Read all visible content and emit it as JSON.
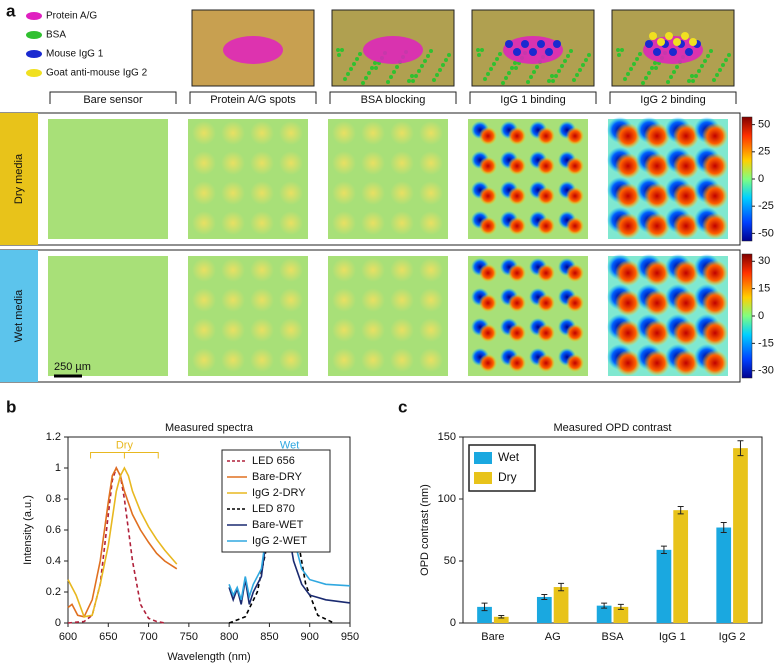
{
  "panel_a": {
    "label": "a",
    "legend": [
      "Protein A/G",
      "BSA",
      "Mouse IgG 1",
      "Goat anti-mouse IgG 2"
    ],
    "stages": [
      "Bare sensor",
      "Protein A/G spots",
      "BSA blocking",
      "IgG 1 binding",
      "IgG 2 binding"
    ],
    "rows": [
      {
        "label": "Dry media",
        "color": "#e8c31a",
        "colorbar_lim": [
          -57,
          57
        ],
        "colorbar_ticks": [
          50,
          25,
          0,
          -25,
          -50
        ]
      },
      {
        "label": "Wet media",
        "color": "#5cc4ec",
        "colorbar_lim": [
          -34,
          34
        ],
        "colorbar_ticks": [
          30,
          15,
          0,
          -15,
          -30
        ]
      }
    ],
    "scale_bar": "250 µm"
  },
  "chart_data": [
    {
      "type": "line",
      "label": "b",
      "title": "Measured spectra",
      "x_label": "Wavelength (nm)",
      "y_label": "Intensity (a.u.)",
      "xlim": [
        600,
        950
      ],
      "xticks": [
        600,
        650,
        700,
        750,
        800,
        850,
        900,
        950
      ],
      "ylim": [
        0,
        1.2
      ],
      "yticks": [
        0,
        0.2,
        0.4,
        0.6,
        0.8,
        1,
        1.2
      ],
      "annotations": [
        "Dry",
        "Wet"
      ],
      "legend": "upper middle",
      "series": [
        {
          "name": "LED 656",
          "color": "#b0203a",
          "dash": true,
          "x": [
            600,
            620,
            630,
            640,
            650,
            655,
            660,
            665,
            670,
            680,
            690,
            700,
            710,
            720
          ],
          "values": [
            0,
            0.01,
            0.05,
            0.25,
            0.7,
            0.92,
            1,
            0.95,
            0.8,
            0.4,
            0.12,
            0.03,
            0.01,
            0
          ]
        },
        {
          "name": "Bare-DRY",
          "color": "#e07020",
          "dash": false,
          "x": [
            600,
            605,
            612,
            620,
            630,
            640,
            650,
            655,
            660,
            665,
            670,
            680,
            690,
            700,
            710,
            720,
            735
          ],
          "values": [
            0.1,
            0.12,
            0.05,
            0.04,
            0.15,
            0.4,
            0.78,
            0.95,
            1,
            0.95,
            0.85,
            0.7,
            0.6,
            0.52,
            0.45,
            0.4,
            0.35
          ]
        },
        {
          "name": "IgG 2-DRY",
          "color": "#e8b820",
          "dash": false,
          "x": [
            600,
            610,
            620,
            630,
            640,
            650,
            660,
            665,
            670,
            675,
            680,
            690,
            700,
            710,
            720,
            735
          ],
          "values": [
            0.28,
            0.18,
            0.04,
            0.05,
            0.25,
            0.5,
            0.85,
            0.95,
            1,
            0.95,
            0.85,
            0.72,
            0.62,
            0.54,
            0.47,
            0.38
          ]
        },
        {
          "name": "LED 870",
          "color": "#000000",
          "dash": true,
          "x": [
            800,
            820,
            835,
            845,
            855,
            860,
            865,
            870,
            875,
            885,
            895,
            910,
            930
          ],
          "values": [
            0,
            0.04,
            0.2,
            0.45,
            0.8,
            0.95,
            1,
            0.95,
            0.85,
            0.55,
            0.25,
            0.05,
            0
          ]
        },
        {
          "name": "Bare-WET",
          "color": "#1a2a70",
          "dash": false,
          "x": [
            800,
            805,
            810,
            815,
            820,
            825,
            830,
            840,
            850,
            855,
            860,
            865,
            870,
            880,
            890,
            900,
            920,
            950
          ],
          "values": [
            0.23,
            0.15,
            0.22,
            0.12,
            0.28,
            0.12,
            0.2,
            0.3,
            0.7,
            0.92,
            1,
            0.92,
            0.7,
            0.4,
            0.25,
            0.18,
            0.15,
            0.13
          ]
        },
        {
          "name": "IgG 2-WET",
          "color": "#30a8e0",
          "dash": false,
          "x": [
            800,
            805,
            810,
            815,
            820,
            825,
            830,
            840,
            850,
            855,
            860,
            865,
            870,
            880,
            890,
            900,
            920,
            950
          ],
          "values": [
            0.25,
            0.18,
            0.23,
            0.15,
            0.3,
            0.17,
            0.25,
            0.35,
            0.72,
            0.9,
            0.98,
            1,
            0.85,
            0.55,
            0.35,
            0.28,
            0.25,
            0.24
          ]
        }
      ]
    },
    {
      "type": "bar",
      "label": "c",
      "title": "Measured OPD contrast",
      "y_label": "OPD contrast (nm)",
      "categories": [
        "Bare",
        "AG",
        "BSA",
        "IgG 1",
        "IgG 2"
      ],
      "ylim": [
        0,
        150
      ],
      "yticks": [
        0,
        50,
        100,
        150
      ],
      "legend": "upper left",
      "series": [
        {
          "name": "Wet",
          "color": "#1aa8e0",
          "values": [
            13,
            21,
            14,
            59,
            77
          ],
          "errors": [
            3,
            2,
            2,
            3,
            4
          ]
        },
        {
          "name": "Dry",
          "color": "#e8c31a",
          "values": [
            5,
            29,
            13,
            91,
            141
          ],
          "errors": [
            1,
            3,
            2,
            3,
            6
          ]
        }
      ]
    }
  ]
}
